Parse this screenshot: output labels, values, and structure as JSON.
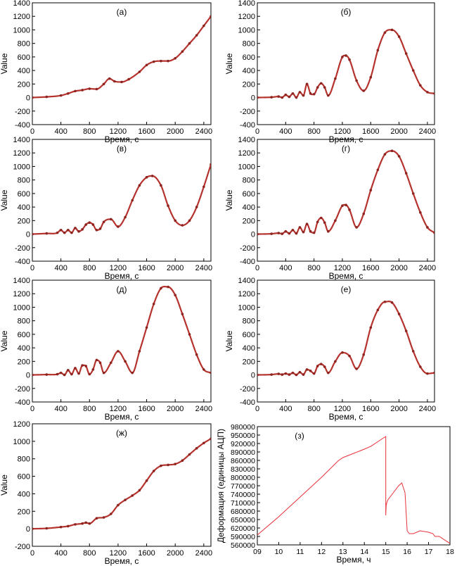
{
  "chart_data": [
    {
      "type": "scatter",
      "panel_label": "(а)",
      "xlabel": "Время, с",
      "ylabel": "Value",
      "xlim": [
        0,
        2500
      ],
      "ylim": [
        -400,
        1400
      ],
      "xticks": [
        0,
        400,
        800,
        1200,
        1600,
        2000,
        2400
      ],
      "yticks": [
        -400,
        -200,
        0,
        200,
        400,
        600,
        800,
        1000,
        1200,
        1400
      ],
      "x": [
        0,
        200,
        400,
        500,
        600,
        700,
        800,
        900,
        1000,
        1080,
        1150,
        1250,
        1350,
        1500,
        1600,
        1700,
        1800,
        1900,
        2000,
        2100,
        2200,
        2300,
        2400,
        2500
      ],
      "values": [
        0,
        10,
        30,
        60,
        95,
        110,
        130,
        125,
        200,
        280,
        240,
        230,
        270,
        380,
        480,
        530,
        540,
        540,
        580,
        680,
        800,
        920,
        1060,
        1200
      ]
    },
    {
      "type": "scatter",
      "panel_label": "(б)",
      "xlabel": "Время, с",
      "ylabel": "Value",
      "xlim": [
        0,
        2500
      ],
      "ylim": [
        -400,
        1400
      ],
      "xticks": [
        0,
        400,
        800,
        1200,
        1600,
        2000,
        2400
      ],
      "yticks": [
        -400,
        -200,
        0,
        200,
        400,
        600,
        800,
        1000,
        1200,
        1400
      ],
      "x": [
        0,
        200,
        300,
        350,
        400,
        450,
        500,
        550,
        600,
        650,
        700,
        750,
        800,
        850,
        900,
        950,
        1000,
        1100,
        1200,
        1250,
        1300,
        1400,
        1500,
        1600,
        1700,
        1800,
        1900,
        2000,
        2100,
        2200,
        2300,
        2400,
        2500
      ],
      "values": [
        0,
        5,
        15,
        0,
        40,
        10,
        60,
        0,
        80,
        30,
        200,
        60,
        50,
        150,
        210,
        150,
        30,
        280,
        600,
        620,
        560,
        250,
        100,
        300,
        700,
        960,
        1000,
        900,
        650,
        400,
        180,
        80,
        60
      ]
    },
    {
      "type": "scatter",
      "panel_label": "(в)",
      "xlabel": "Время, с",
      "ylabel": "Value",
      "xlim": [
        0,
        2500
      ],
      "ylim": [
        -400,
        1400
      ],
      "xticks": [
        0,
        400,
        800,
        1200,
        1600,
        2000,
        2400
      ],
      "yticks": [
        -400,
        -200,
        0,
        200,
        400,
        600,
        800,
        1000,
        1200,
        1400
      ],
      "x": [
        0,
        200,
        350,
        400,
        450,
        500,
        550,
        600,
        650,
        700,
        750,
        800,
        850,
        900,
        950,
        1000,
        1100,
        1200,
        1300,
        1400,
        1500,
        1600,
        1680,
        1800,
        1900,
        2000,
        2100,
        2200,
        2300,
        2400,
        2500
      ],
      "values": [
        0,
        10,
        20,
        60,
        20,
        60,
        20,
        90,
        40,
        70,
        140,
        170,
        140,
        60,
        80,
        180,
        220,
        110,
        250,
        500,
        720,
        840,
        860,
        720,
        420,
        200,
        130,
        200,
        400,
        700,
        1030
      ]
    },
    {
      "type": "scatter",
      "panel_label": "(г)",
      "xlabel": "Время, с",
      "ylabel": "Value",
      "xlim": [
        0,
        2500
      ],
      "ylim": [
        -400,
        1400
      ],
      "xticks": [
        0,
        400,
        800,
        1200,
        1600,
        2000,
        2400
      ],
      "yticks": [
        -400,
        -200,
        0,
        200,
        400,
        600,
        800,
        1000,
        1200,
        1400
      ],
      "x": [
        0,
        200,
        300,
        350,
        400,
        450,
        500,
        550,
        600,
        650,
        700,
        750,
        800,
        850,
        900,
        950,
        1000,
        1100,
        1200,
        1250,
        1300,
        1400,
        1500,
        1600,
        1700,
        1800,
        1900,
        2000,
        2100,
        2200,
        2300,
        2400,
        2500
      ],
      "values": [
        0,
        5,
        15,
        5,
        40,
        10,
        60,
        10,
        100,
        30,
        150,
        40,
        20,
        180,
        240,
        170,
        40,
        200,
        420,
        430,
        360,
        100,
        300,
        650,
        950,
        1180,
        1230,
        1150,
        900,
        600,
        320,
        100,
        20
      ]
    },
    {
      "type": "scatter",
      "panel_label": "(д)",
      "xlabel": "Время, с",
      "ylabel": "Value",
      "xlim": [
        0,
        2500
      ],
      "ylim": [
        -400,
        1400
      ],
      "xticks": [
        0,
        400,
        800,
        1200,
        1600,
        2000,
        2400
      ],
      "yticks": [
        -400,
        -200,
        0,
        200,
        400,
        600,
        800,
        1000,
        1200,
        1400
      ],
      "x": [
        0,
        200,
        350,
        400,
        450,
        500,
        550,
        600,
        650,
        700,
        750,
        800,
        850,
        900,
        950,
        1000,
        1100,
        1200,
        1300,
        1400,
        1500,
        1600,
        1700,
        1800,
        1900,
        2000,
        2100,
        2200,
        2300,
        2400,
        2500
      ],
      "values": [
        0,
        5,
        10,
        30,
        0,
        70,
        10,
        100,
        20,
        140,
        130,
        10,
        80,
        220,
        180,
        30,
        180,
        350,
        200,
        30,
        350,
        700,
        1050,
        1280,
        1300,
        1180,
        900,
        600,
        300,
        80,
        30
      ]
    },
    {
      "type": "scatter",
      "panel_label": "(е)",
      "xlabel": "Время, с",
      "ylabel": "Value",
      "xlim": [
        0,
        2500
      ],
      "ylim": [
        -400,
        1400
      ],
      "xticks": [
        0,
        400,
        800,
        1200,
        1600,
        2000,
        2400
      ],
      "yticks": [
        -400,
        -200,
        0,
        200,
        400,
        600,
        800,
        1000,
        1200,
        1400
      ],
      "x": [
        0,
        200,
        300,
        350,
        400,
        450,
        500,
        550,
        600,
        650,
        700,
        750,
        800,
        850,
        900,
        950,
        1000,
        1100,
        1200,
        1300,
        1400,
        1500,
        1600,
        1700,
        1800,
        1900,
        2000,
        2100,
        2200,
        2300,
        2400,
        2500
      ],
      "values": [
        0,
        5,
        15,
        5,
        20,
        5,
        30,
        0,
        40,
        5,
        80,
        60,
        20,
        130,
        160,
        120,
        30,
        200,
        330,
        280,
        90,
        300,
        700,
        960,
        1080,
        1070,
        900,
        650,
        350,
        120,
        20,
        30
      ]
    },
    {
      "type": "scatter",
      "panel_label": "(ж)",
      "xlabel": "Время, с",
      "ylabel": "Value",
      "xlim": [
        0,
        2500
      ],
      "ylim": [
        -200,
        1200
      ],
      "xticks": [
        0,
        400,
        800,
        1200,
        1600,
        2000,
        2400
      ],
      "yticks": [
        -200,
        0,
        200,
        400,
        600,
        800,
        1000,
        1200
      ],
      "x": [
        0,
        200,
        400,
        500,
        600,
        700,
        750,
        800,
        900,
        1000,
        1100,
        1200,
        1300,
        1400,
        1500,
        1600,
        1700,
        1800,
        1900,
        2000,
        2100,
        2200,
        2300,
        2400,
        2500
      ],
      "values": [
        0,
        5,
        20,
        30,
        50,
        60,
        70,
        60,
        120,
        130,
        170,
        270,
        330,
        380,
        440,
        550,
        660,
        720,
        730,
        740,
        780,
        850,
        920,
        980,
        1030
      ]
    },
    {
      "type": "line",
      "panel_label": "(з)",
      "xlabel": "Время, ч",
      "ylabel": "Деформация (единицы АЦП)",
      "xlim": [
        9,
        18
      ],
      "ylim": [
        560000,
        980000
      ],
      "xticks": [
        "09",
        "10",
        "11",
        "12",
        "13",
        "14",
        "15",
        "16",
        "17",
        "18"
      ],
      "xtick_values": [
        9,
        10,
        11,
        12,
        13,
        14,
        15,
        16,
        17,
        18
      ],
      "yticks": [
        560000,
        590000,
        620000,
        650000,
        680000,
        710000,
        740000,
        770000,
        800000,
        830000,
        860000,
        890000,
        920000,
        950000,
        980000
      ],
      "x": [
        9.0,
        10.0,
        11.0,
        12.0,
        12.8,
        13.0,
        13.5,
        14.0,
        14.3,
        14.5,
        14.8,
        15.0,
        15.0,
        15.02,
        15.05,
        15.1,
        15.3,
        15.6,
        15.75,
        15.9,
        16.0,
        16.1,
        16.3,
        16.6,
        17.0,
        17.2,
        17.3,
        17.5,
        18.0
      ],
      "values": [
        595000,
        660000,
        730000,
        800000,
        860000,
        870000,
        885000,
        900000,
        910000,
        920000,
        935000,
        945000,
        665000,
        700000,
        710000,
        720000,
        740000,
        770000,
        780000,
        745000,
        610000,
        600000,
        600000,
        610000,
        605000,
        600000,
        590000,
        590000,
        565000
      ]
    }
  ]
}
